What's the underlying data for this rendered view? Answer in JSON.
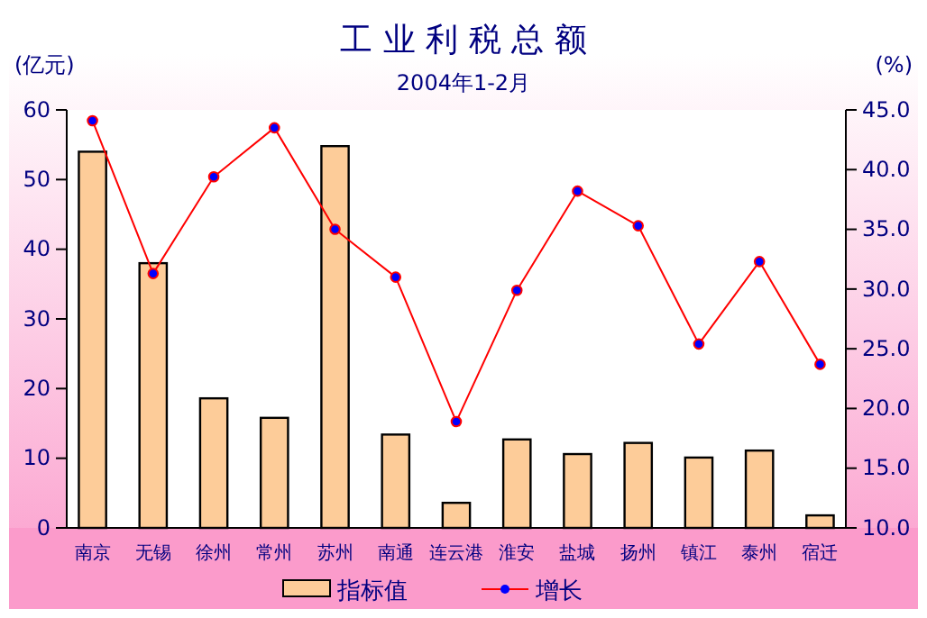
{
  "chart_data": {
    "type": "bar",
    "title": "工 业 利 税 总 额",
    "subtitle": "2004年1-2月",
    "ylabel": "(亿元)",
    "y2label": "(%)",
    "categories": [
      "南京",
      "无锡",
      "徐州",
      "常州",
      "苏州",
      "南通",
      "连云港",
      "淮安",
      "盐城",
      "扬州",
      "镇江",
      "泰州",
      "宿迁"
    ],
    "series": [
      {
        "name": "指标值",
        "color": "#fdcc99",
        "values": [
          54,
          38,
          18.6,
          15.8,
          54.8,
          13.4,
          3.6,
          12.7,
          10.6,
          12.2,
          10.1,
          11.1,
          1.8
        ]
      },
      {
        "name": "增长",
        "type": "line",
        "axis": "y2",
        "color": "#ff0000",
        "marker": "circle",
        "values": [
          44.1,
          31.3,
          39.4,
          43.5,
          35.0,
          31.0,
          18.9,
          29.9,
          38.2,
          35.3,
          25.4,
          32.3,
          23.7
        ]
      }
    ],
    "ylim": [
      0,
      60
    ],
    "yticks": [
      0,
      10,
      20,
      30,
      40,
      50,
      60
    ],
    "y2lim": [
      10,
      45
    ],
    "y2ticks": [
      {
        "value": 10,
        "label": "10.0"
      },
      {
        "value": 15,
        "label": "15.0"
      },
      {
        "value": 20,
        "label": "20.0"
      },
      {
        "value": 25,
        "label": "25.0"
      },
      {
        "value": 30,
        "label": "30.0"
      },
      {
        "value": 35,
        "label": "35.0"
      },
      {
        "value": 40,
        "label": "40.0"
      },
      {
        "value": 45,
        "label": "45.0"
      }
    ],
    "legend": "bottom",
    "grid": false
  }
}
